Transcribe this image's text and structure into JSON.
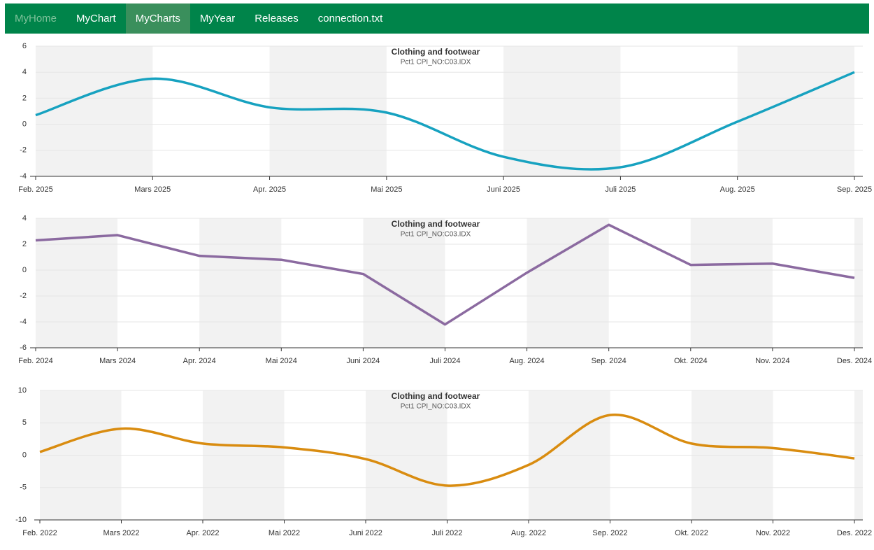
{
  "nav": {
    "items": [
      "MyHome",
      "MyChart",
      "MyCharts",
      "MyYear",
      "Releases",
      "connection.txt"
    ],
    "active": "MyCharts",
    "muted": "MyHome"
  },
  "chart_data": [
    {
      "type": "line",
      "smooth": true,
      "title": "Clothing and footwear",
      "subtitle": "Pct1 CPI_NO:C03.IDX",
      "categories": [
        "Feb. 2025",
        "Mars 2025",
        "Apr. 2025",
        "Mai 2025",
        "Juni 2025",
        "Juli 2025",
        "Aug. 2025",
        "Sep. 2025"
      ],
      "series": [
        {
          "name": "Clothing and footwear",
          "color": "#17a2c0",
          "values": [
            0.7,
            3.5,
            1.3,
            0.9,
            -2.5,
            -3.3,
            0.2,
            4.0
          ]
        }
      ],
      "ylim": [
        -4,
        6
      ],
      "yticks": [
        -4,
        -2,
        0,
        2,
        4,
        6
      ],
      "grid": true
    },
    {
      "type": "line",
      "smooth": false,
      "title": "Clothing and footwear",
      "subtitle": "Pct1 CPI_NO:C03.IDX",
      "categories": [
        "Feb. 2024",
        "Mars 2024",
        "Apr. 2024",
        "Mai 2024",
        "Juni 2024",
        "Juli 2024",
        "Aug. 2024",
        "Sep. 2024",
        "Okt. 2024",
        "Nov. 2024",
        "Des. 2024"
      ],
      "series": [
        {
          "name": "Clothing and footwear",
          "color": "#8b6aa0",
          "values": [
            2.3,
            2.7,
            1.1,
            0.8,
            -0.3,
            -4.2,
            -0.2,
            3.5,
            0.4,
            0.5,
            -0.6
          ]
        }
      ],
      "ylim": [
        -6,
        4
      ],
      "yticks": [
        -6,
        -4,
        -2,
        0,
        2,
        4
      ],
      "grid": true
    },
    {
      "type": "line",
      "smooth": true,
      "title": "Clothing and footwear",
      "subtitle": "Pct1 CPI_NO:C03.IDX",
      "categories": [
        "Feb. 2022",
        "Mars 2022",
        "Apr. 2022",
        "Mai 2022",
        "Juni 2022",
        "Juli 2022",
        "Aug. 2022",
        "Sep. 2022",
        "Okt. 2022",
        "Nov. 2022",
        "Des. 2022"
      ],
      "series": [
        {
          "name": "Clothing and footwear",
          "color": "#d98c10",
          "values": [
            0.5,
            4.1,
            1.8,
            1.2,
            -0.6,
            -4.7,
            -1.5,
            6.2,
            1.8,
            1.1,
            -0.5
          ]
        }
      ],
      "ylim": [
        -10,
        10
      ],
      "yticks": [
        -10,
        -5,
        0,
        5,
        10
      ],
      "grid": true
    }
  ]
}
